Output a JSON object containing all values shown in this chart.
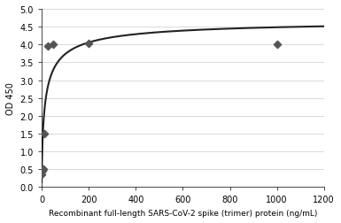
{
  "scatter_x": [
    1.5625,
    3.125,
    6.25,
    12.5,
    25,
    50,
    200,
    1000
  ],
  "scatter_y": [
    0.35,
    0.45,
    0.5,
    1.5,
    3.95,
    4.0,
    4.02,
    4.0
  ],
  "xlabel": "Recombinant full-length SARS-CoV-2 spike (trimer) protein (ng/mL)",
  "ylabel": "OD 450",
  "xlim": [
    0,
    1200
  ],
  "ylim": [
    0,
    5
  ],
  "yticks": [
    0,
    0.5,
    1,
    1.5,
    2,
    2.5,
    3,
    3.5,
    4,
    4.5,
    5
  ],
  "xticks": [
    0,
    200,
    400,
    600,
    800,
    1000,
    1200
  ],
  "marker_color": "#555555",
  "line_color": "#222222",
  "background_color": "#ffffff",
  "grid_color": "#cccccc",
  "curve_xmax": 1200,
  "asymptote": 4.72
}
